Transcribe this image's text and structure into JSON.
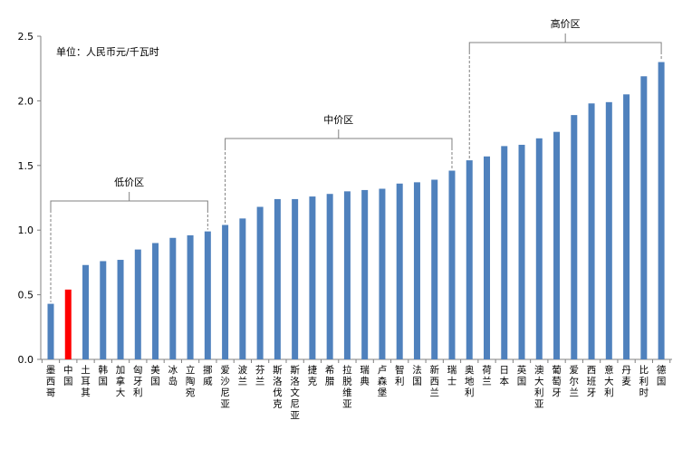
{
  "chart_data": {
    "type": "bar",
    "title": "",
    "unit_note": "单位：人民币元/千瓦时",
    "xlabel": "",
    "ylabel": "",
    "ylim": [
      0,
      2.5
    ],
    "yticks": [
      "0.0",
      "0.5",
      "1.0",
      "1.5",
      "2.0",
      "2.5"
    ],
    "grid": false,
    "categories": [
      "墨西哥",
      "中国",
      "土耳其",
      "韩国",
      "加拿大",
      "匈牙利",
      "美国",
      "冰岛",
      "立陶宛",
      "挪威",
      "爱沙尼亚",
      "波兰",
      "芬兰",
      "斯洛伐克",
      "斯洛文尼亚",
      "捷克",
      "希腊",
      "拉脱维亚",
      "瑞典",
      "卢森堡",
      "智利",
      "法国",
      "新西兰",
      "瑞士",
      "奥地利",
      "荷兰",
      "日本",
      "英国",
      "澳大利亚",
      "葡萄牙",
      "爱尔兰",
      "西班牙",
      "意大利",
      "丹麦",
      "比利时",
      "德国"
    ],
    "values": [
      0.43,
      0.54,
      0.73,
      0.76,
      0.77,
      0.85,
      0.9,
      0.94,
      0.96,
      0.99,
      1.04,
      1.09,
      1.18,
      1.24,
      1.24,
      1.26,
      1.28,
      1.3,
      1.31,
      1.32,
      1.36,
      1.37,
      1.39,
      1.46,
      1.54,
      1.57,
      1.65,
      1.66,
      1.71,
      1.76,
      1.89,
      1.98,
      1.99,
      2.05,
      2.19,
      2.3
    ],
    "highlight_index": 1,
    "colors": {
      "bar": "#4F81BD",
      "highlight": "#FF0000"
    },
    "annotations": [
      {
        "label": "低价区",
        "from": 0,
        "to": 9
      },
      {
        "label": "中价区",
        "from": 10,
        "to": 23
      },
      {
        "label": "高价区",
        "from": 24,
        "to": 35
      }
    ]
  }
}
